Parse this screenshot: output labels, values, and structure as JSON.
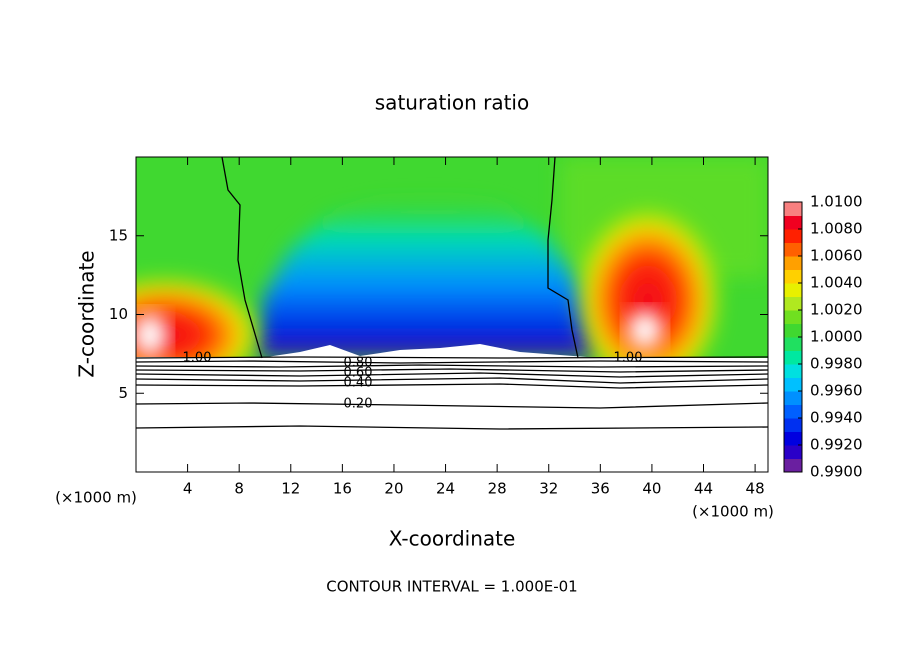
{
  "chart_data": {
    "type": "contour",
    "title": "saturation ratio",
    "x_label": "X-coordinate",
    "y_label": "Z-coordinate",
    "x_unit": "(×1000 m)",
    "footnote": "CONTOUR INTERVAL = 1.000E-01",
    "xlim": [
      0,
      49
    ],
    "ylim": [
      0,
      20
    ],
    "xticks": [
      4,
      8,
      12,
      16,
      20,
      24,
      28,
      32,
      36,
      40,
      44,
      48
    ],
    "yticks": [
      5,
      10,
      15
    ],
    "contour_labels": [
      "1.00",
      "0.80",
      "0.60",
      "0.40",
      "0.20",
      "1.00"
    ],
    "colorbar": {
      "lim": [
        0.99,
        1.01
      ],
      "ticks": [
        {
          "value": 0.99,
          "label": "0.9900"
        },
        {
          "value": 0.992,
          "label": "0.9920"
        },
        {
          "value": 0.994,
          "label": "0.9940"
        },
        {
          "value": 0.996,
          "label": "0.9960"
        },
        {
          "value": 0.998,
          "label": "0.9980"
        },
        {
          "value": 1.0,
          "label": "1.0000"
        },
        {
          "value": 1.002,
          "label": "1.0020"
        },
        {
          "value": 1.004,
          "label": "1.0040"
        },
        {
          "value": 1.006,
          "label": "1.0060"
        },
        {
          "value": 1.008,
          "label": "1.0080"
        },
        {
          "value": 1.01,
          "label": "1.0100"
        }
      ],
      "colors": [
        "#6a1fa0",
        "#2a00c8",
        "#0000e0",
        "#0030f0",
        "#0060ff",
        "#0090ff",
        "#00c0ff",
        "#00e0e0",
        "#00e8a0",
        "#20e060",
        "#40d830",
        "#70e020",
        "#b0e820",
        "#e8f000",
        "#ffd000",
        "#ffa000",
        "#ff6000",
        "#ff2000",
        "#f00020",
        "#f88080"
      ]
    }
  }
}
